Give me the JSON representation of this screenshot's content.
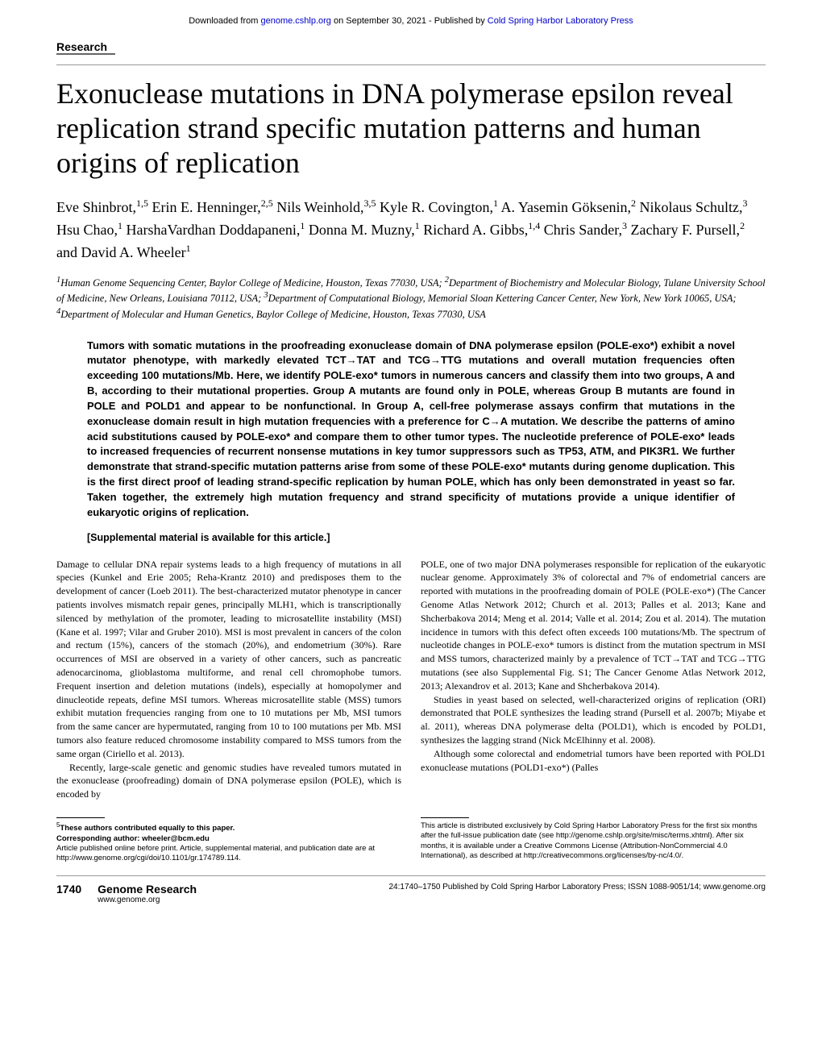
{
  "header": {
    "download_prefix": "Downloaded from ",
    "download_link": "genome.cshlp.org",
    "download_mid": " on September 30, 2021 - Published by ",
    "publisher_link": "Cold Spring Harbor Laboratory Press"
  },
  "section_label": "Research",
  "title": "Exonuclease mutations in DNA polymerase epsilon reveal replication strand specific mutation patterns and human origins of replication",
  "authors_html": "Eve Shinbrot,<sup>1,5</sup> Erin E. Henninger,<sup>2,5</sup> Nils Weinhold,<sup>3,5</sup> Kyle R. Covington,<sup>1</sup> A. Yasemin Göksenin,<sup>2</sup> Nikolaus Schultz,<sup>3</sup> Hsu Chao,<sup>1</sup> HarshaVardhan Doddapaneni,<sup>1</sup> Donna M. Muzny,<sup>1</sup> Richard A. Gibbs,<sup>1,4</sup> Chris Sander,<sup>3</sup> Zachary F. Pursell,<sup>2</sup> and David A. Wheeler<sup>1</sup>",
  "affiliations_html": "<sup>1</sup>Human Genome Sequencing Center, Baylor College of Medicine, Houston, Texas 77030, USA; <sup>2</sup>Department of Biochemistry and Molecular Biology, Tulane University School of Medicine, New Orleans, Louisiana 70112, USA; <sup>3</sup>Department of Computational Biology, Memorial Sloan Kettering Cancer Center, New York, New York 10065, USA; <sup>4</sup>Department of Molecular and Human Genetics, Baylor College of Medicine, Houston, Texas 77030, USA",
  "abstract": "Tumors with somatic mutations in the proofreading exonuclease domain of DNA polymerase epsilon (POLE-exo*) exhibit a novel mutator phenotype, with markedly elevated TCT→TAT and TCG→TTG mutations and overall mutation frequencies often exceeding 100 mutations/Mb. Here, we identify POLE-exo* tumors in numerous cancers and classify them into two groups, A and B, according to their mutational properties. Group A mutants are found only in POLE, whereas Group B mutants are found in POLE and POLD1 and appear to be nonfunctional. In Group A, cell-free polymerase assays confirm that mutations in the exonuclease domain result in high mutation frequencies with a preference for C→A mutation. We describe the patterns of amino acid substitutions caused by POLE-exo* and compare them to other tumor types. The nucleotide preference of POLE-exo* leads to increased frequencies of recurrent nonsense mutations in key tumor suppressors such as TP53, ATM, and PIK3R1. We further demonstrate that strand-specific mutation patterns arise from some of these POLE-exo* mutants during genome duplication. This is the first direct proof of leading strand-specific replication by human POLE, which has only been demonstrated in yeast so far. Taken together, the extremely high mutation frequency and strand specificity of mutations provide a unique identifier of eukaryotic origins of replication.",
  "supplemental": "[Supplemental material is available for this article.]",
  "body": {
    "left": {
      "p1": "Damage to cellular DNA repair systems leads to a high frequency of mutations in all species (Kunkel and Erie 2005; Reha-Krantz 2010) and predisposes them to the development of cancer (Loeb 2011). The best-characterized mutator phenotype in cancer patients involves mismatch repair genes, principally MLH1, which is transcriptionally silenced by methylation of the promoter, leading to microsatellite instability (MSI) (Kane et al. 1997; Vilar and Gruber 2010). MSI is most prevalent in cancers of the colon and rectum (15%), cancers of the stomach (20%), and endometrium (30%). Rare occurrences of MSI are observed in a variety of other cancers, such as pancreatic adenocarcinoma, glioblastoma multiforme, and renal cell chromophobe tumors. Frequent insertion and deletion mutations (indels), especially at homopolymer and dinucleotide repeats, define MSI tumors. Whereas microsatellite stable (MSS) tumors exhibit mutation frequencies ranging from one to 10 mutations per Mb, MSI tumors from the same cancer are hypermutated, ranging from 10 to 100 mutations per Mb. MSI tumors also feature reduced chromosome instability compared to MSS tumors from the same organ (Ciriello et al. 2013).",
      "p2": "Recently, large-scale genetic and genomic studies have revealed tumors mutated in the exonuclease (proofreading) domain of DNA polymerase epsilon (POLE), which is encoded by"
    },
    "right": {
      "p1": "POLE, one of two major DNA polymerases responsible for replication of the eukaryotic nuclear genome. Approximately 3% of colorectal and 7% of endometrial cancers are reported with mutations in the proofreading domain of POLE (POLE-exo*) (The Cancer Genome Atlas Network 2012; Church et al. 2013; Palles et al. 2013; Kane and Shcherbakova 2014; Meng et al. 2014; Valle et al. 2014; Zou et al. 2014). The mutation incidence in tumors with this defect often exceeds 100 mutations/Mb. The spectrum of nucleotide changes in POLE-exo* tumors is distinct from the mutation spectrum in MSI and MSS tumors, characterized mainly by a prevalence of TCT→TAT and TCG→TTG mutations (see also Supplemental Fig. S1; The Cancer Genome Atlas Network 2012, 2013; Alexandrov et al. 2013; Kane and Shcherbakova 2014).",
      "p2": "Studies in yeast based on selected, well-characterized origins of replication (ORI) demonstrated that POLE synthesizes the leading strand (Pursell et al. 2007b; Miyabe et al. 2011), whereas DNA polymerase delta (POLD1), which is encoded by POLD1, synthesizes the lagging strand (Nick McElhinny et al. 2008).",
      "p3": "Although some colorectal and endometrial tumors have been reported with POLD1 exonuclease mutations (POLD1-exo*) (Palles"
    }
  },
  "footnotes": {
    "left": {
      "line1_html": "<sup>5</sup><b>These authors contributed equally to this paper.</b>",
      "line2_html": "<b>Corresponding author: wheeler@bcm.edu</b>",
      "line3": "Article published online before print. Article, supplemental material, and publication date are at http://www.genome.org/cgi/doi/10.1101/gr.174789.114."
    },
    "right": "This article is distributed exclusively by Cold Spring Harbor Laboratory Press for the first six months after the full-issue publication date (see http://genome.cshlp.org/site/misc/terms.xhtml). After six months, it is available under a Creative Commons License (Attribution-NonCommercial 4.0 International), as described at http://creativecommons.org/licenses/by-nc/4.0/."
  },
  "footer": {
    "page_num": "1740",
    "journal": "Genome Research",
    "url": "www.genome.org",
    "pub_info": "24:1740–1750 Published by Cold Spring Harbor Laboratory Press; ISSN 1088-9051/14; www.genome.org"
  }
}
